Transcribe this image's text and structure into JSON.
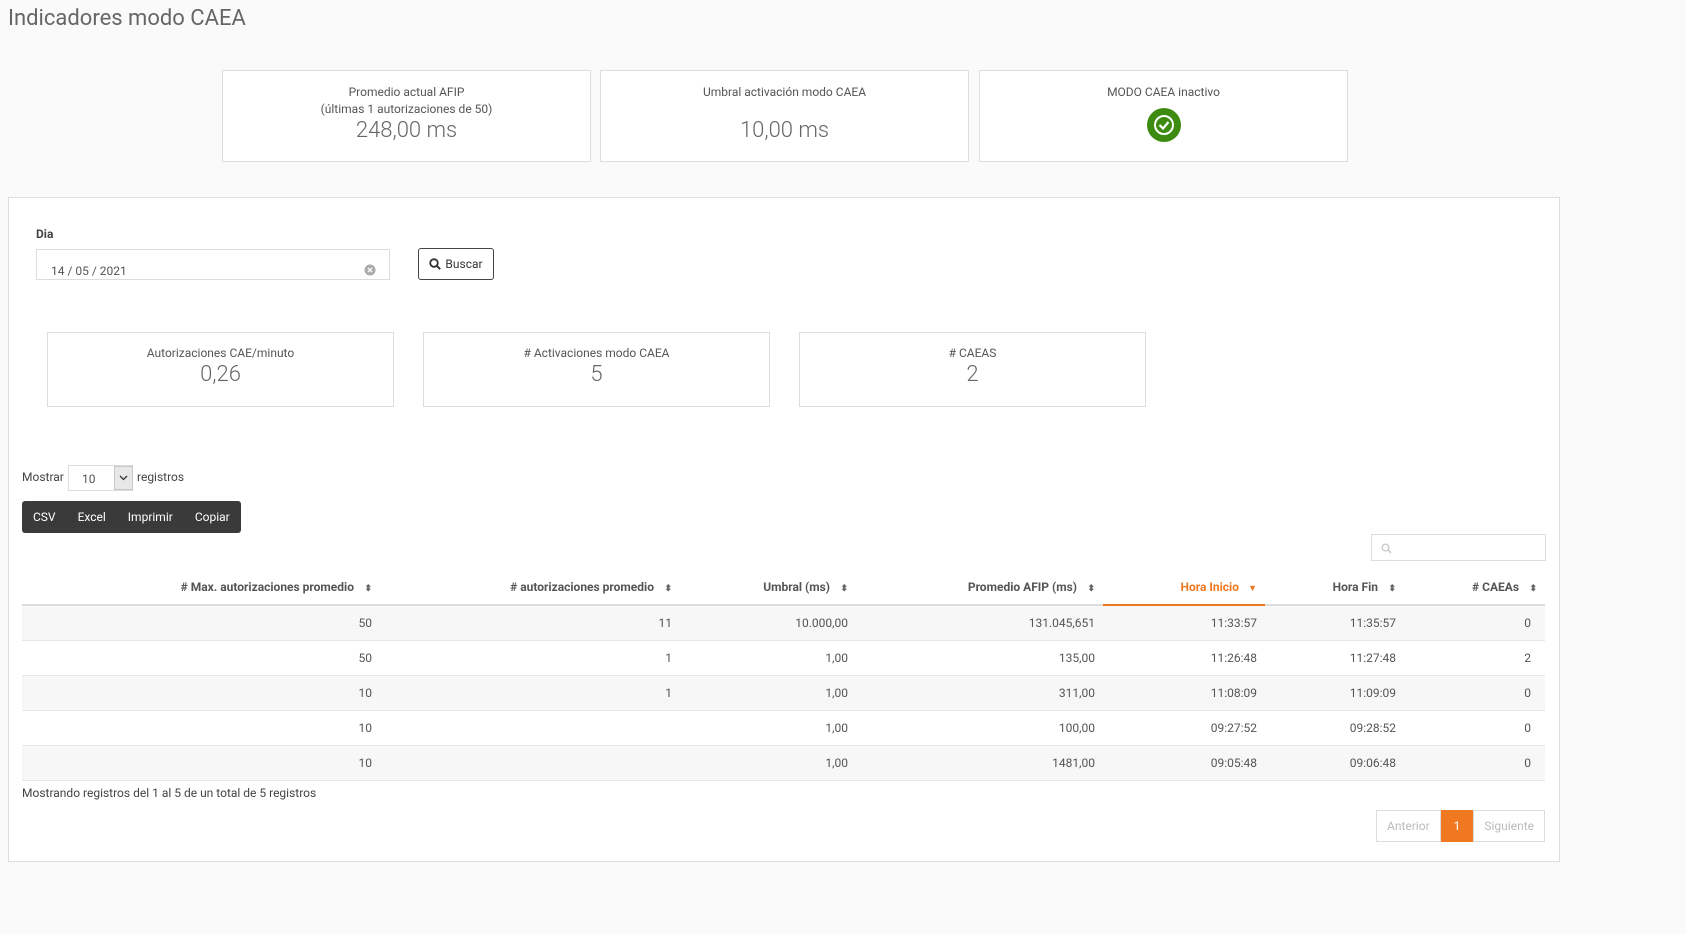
{
  "header": {
    "title": "Indicadores modo CAEA"
  },
  "indicators": [
    {
      "label": "Promedio actual AFIP",
      "sublabel": "(últimas 1 autorizaciones de 50)",
      "value": "248,00 ms"
    },
    {
      "label": "Umbral activación modo CAEA",
      "value": "10,00 ms"
    },
    {
      "label": "MODO CAEA inactivo"
    }
  ],
  "filter": {
    "label": "Dia",
    "date": "14 / 05 / 2021",
    "button": "Buscar"
  },
  "stats": [
    {
      "label": "Autorizaciones CAE/minuto",
      "value": "0,26"
    },
    {
      "label": "# Activaciones modo CAEA",
      "value": "5"
    },
    {
      "label": "# CAEAS",
      "value": "2"
    }
  ],
  "length": {
    "before": "Mostrar",
    "value": "10",
    "after": "registros"
  },
  "buttons": [
    "CSV",
    "Excel",
    "Imprimir",
    "Copiar"
  ],
  "table": {
    "columns": [
      "# Max. autorizaciones promedio",
      "# autorizaciones promedio",
      "Umbral (ms)",
      "Promedio AFIP (ms)",
      "Hora Inicio",
      "Hora Fin",
      "# CAEAs"
    ],
    "rows": [
      [
        "50",
        "11",
        "10.000,00",
        "131.045,651",
        "11:33:57",
        "11:35:57",
        "0"
      ],
      [
        "50",
        "1",
        "1,00",
        "135,00",
        "11:26:48",
        "11:27:48",
        "2"
      ],
      [
        "10",
        "1",
        "1,00",
        "311,00",
        "11:08:09",
        "11:09:09",
        "0"
      ],
      [
        "10",
        null,
        "1,00",
        "100,00",
        "09:27:52",
        "09:28:52",
        "0"
      ],
      [
        "10",
        null,
        "1,00",
        "1481,00",
        "09:05:48",
        "09:06:48",
        "0"
      ]
    ]
  },
  "info": "Mostrando registros del 1 al 5 de un total de 5 registros",
  "pagination": {
    "previous": "Anterior",
    "page": "1",
    "next": "Siguiente"
  }
}
